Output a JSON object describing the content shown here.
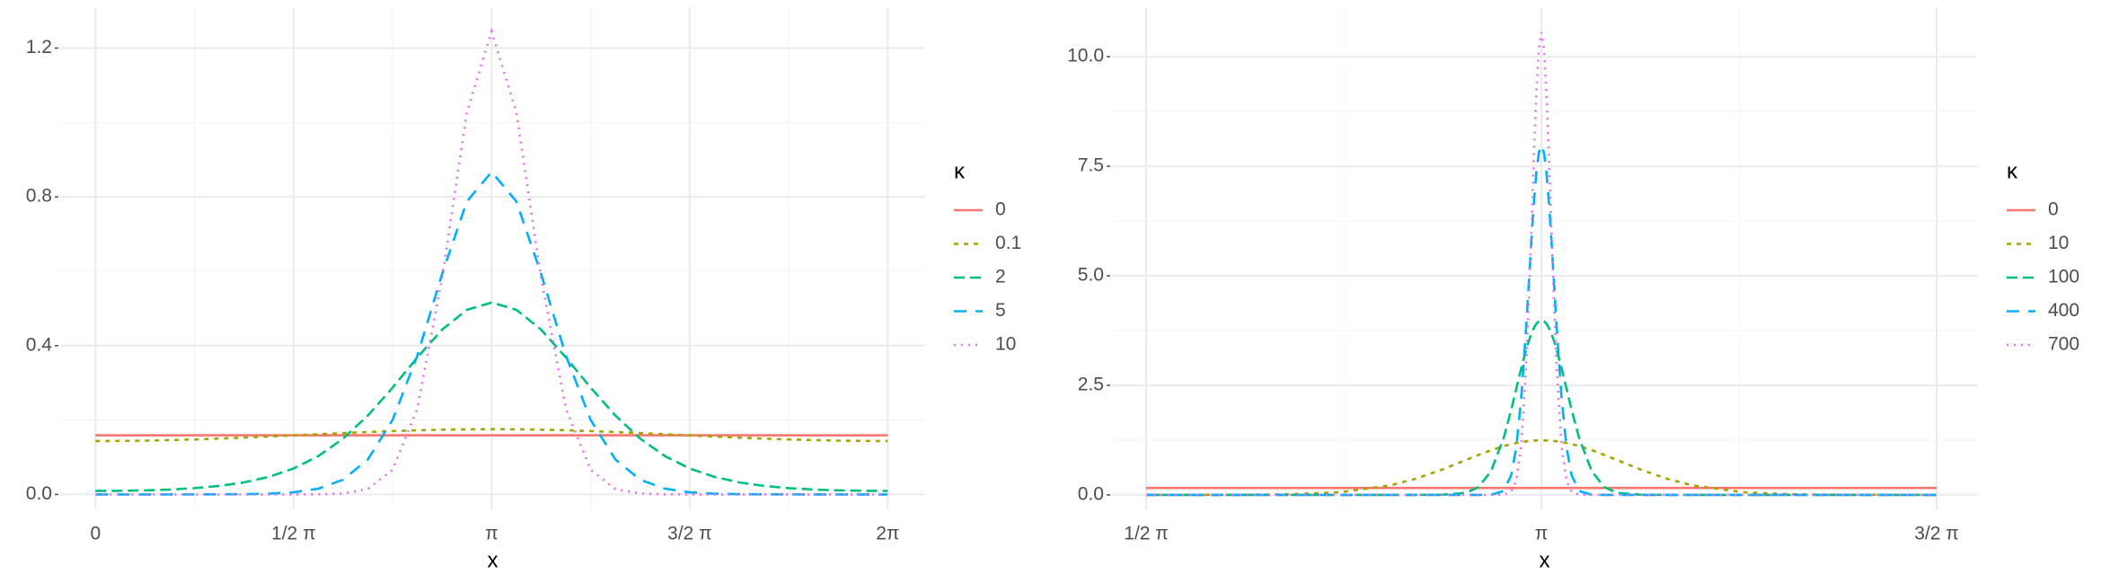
{
  "chart_data": [
    {
      "type": "line",
      "x_label": "x",
      "legend_title": "κ",
      "grid": true,
      "x": [
        0,
        0.19635,
        0.3927,
        0.58905,
        0.7854,
        0.98175,
        1.1781,
        1.37445,
        1.5708,
        1.76715,
        1.9635,
        2.15984,
        2.35619,
        2.55254,
        2.74889,
        2.94524,
        3.14159,
        3.33794,
        3.53429,
        3.73064,
        3.92699,
        4.12334,
        4.31969,
        4.51604,
        4.71239,
        4.90874,
        5.10509,
        5.30144,
        5.49779,
        5.69414,
        5.89049,
        6.08684,
        6.28319
      ],
      "xlim": [
        -0.28,
        6.58
      ],
      "xticks": [
        0,
        {
          "value": 1.5708,
          "label": "1/2 π"
        },
        {
          "value": 3.14159,
          "label": "π"
        },
        {
          "value": 4.71239,
          "label": "3/2 π"
        },
        {
          "value": 6.28319,
          "label": "2π"
        }
      ],
      "ylim": [
        -0.04,
        1.31
      ],
      "yticks": [
        {
          "value": 0,
          "label": "0.0"
        },
        0.4,
        0.8,
        1.2
      ],
      "series": [
        {
          "name": "0",
          "color": "#F8766D",
          "values": [
            0.15915,
            0.15915,
            0.15915,
            0.15915,
            0.15915,
            0.15915,
            0.15915,
            0.15915,
            0.15915,
            0.15915,
            0.15915,
            0.15915,
            0.15915,
            0.15915,
            0.15915,
            0.15915,
            0.15915,
            0.15915,
            0.15915,
            0.15915,
            0.15915,
            0.15915,
            0.15915,
            0.15915,
            0.15915,
            0.15915,
            0.15915,
            0.15915,
            0.15915,
            0.15915,
            0.15915,
            0.15915,
            0.15915
          ]
        },
        {
          "name": "0.1",
          "color": "#A3A500",
          "dash": "5,6",
          "values": [
            0.14365,
            0.14393,
            0.14475,
            0.14609,
            0.14792,
            0.15018,
            0.1528,
            0.15569,
            0.15876,
            0.16189,
            0.16495,
            0.16783,
            0.17039,
            0.17252,
            0.17412,
            0.17512,
            0.17546,
            0.17512,
            0.17412,
            0.17252,
            0.17039,
            0.16783,
            0.16495,
            0.16189,
            0.15876,
            0.15569,
            0.1528,
            0.15018,
            0.14792,
            0.14609,
            0.14475,
            0.14393,
            0.14365
          ]
        },
        {
          "name": "2",
          "color": "#00BF7D",
          "dash": "12,6",
          "values": [
            0.00945,
            0.00982,
            0.011,
            0.01324,
            0.01697,
            0.02298,
            0.03248,
            0.04726,
            0.06982,
            0.10314,
            0.15009,
            0.21209,
            0.28718,
            0.36827,
            0.44303,
            0.49643,
            0.51588,
            0.49643,
            0.44303,
            0.36827,
            0.28718,
            0.21209,
            0.15009,
            0.10314,
            0.06982,
            0.04726,
            0.03248,
            0.02298,
            0.01697,
            0.01324,
            0.011,
            0.00982,
            0.00945
          ]
        },
        {
          "name": "5",
          "color": "#00B0F6",
          "dash": "14,10",
          "values": [
            4e-05,
            4e-05,
            6e-05,
            9e-05,
            0.00017,
            0.00036,
            0.00086,
            0.0022,
            0.00584,
            0.0155,
            0.03959,
            0.09398,
            0.20048,
            0.37336,
            0.59264,
            0.7877,
            0.86713,
            0.7877,
            0.59264,
            0.37336,
            0.20048,
            0.09398,
            0.03959,
            0.0155,
            0.00584,
            0.0022,
            0.00086,
            0.00036,
            0.00017,
            9e-05,
            6e-05,
            4e-05,
            4e-05
          ]
        },
        {
          "name": "10",
          "color": "#E76BF3",
          "dash": "2,6",
          "values": [
            0,
            0,
            0,
            0,
            0,
            0,
            0,
            0,
            6e-05,
            0.0004,
            0.0026,
            0.01462,
            0.06655,
            0.23082,
            0.58157,
            1.02737,
            1.24502,
            1.02737,
            0.58157,
            0.23082,
            0.06655,
            0.01462,
            0.0026,
            0.0004,
            6e-05,
            0,
            0,
            0,
            0,
            0,
            0,
            0,
            0
          ]
        }
      ]
    },
    {
      "type": "line",
      "x_label": "x",
      "legend_title": "κ",
      "grid": true,
      "x": [
        1.5708,
        1.94159,
        2.14159,
        2.34159,
        2.54159,
        2.64159,
        2.74159,
        2.84159,
        2.89159,
        2.94159,
        2.99159,
        3.02159,
        3.04159,
        3.06159,
        3.08159,
        3.09159,
        3.10159,
        3.11159,
        3.12159,
        3.13159,
        3.14159,
        3.15159,
        3.16159,
        3.17159,
        3.18159,
        3.19159,
        3.20159,
        3.22159,
        3.24159,
        3.26159,
        3.29159,
        3.34159,
        3.39159,
        3.44159,
        3.54159,
        3.64159,
        3.74159,
        3.94159,
        4.14159,
        4.34159,
        4.71239
      ],
      "xlim": [
        1.435,
        4.873
      ],
      "xticks": [
        {
          "value": 1.5708,
          "label": "1/2 π"
        },
        {
          "value": 3.14159,
          "label": "π"
        },
        {
          "value": 4.71239,
          "label": "3/2 π"
        }
      ],
      "ylim": [
        -0.33,
        11.13
      ],
      "yticks": [
        {
          "value": 0,
          "label": "0.0"
        },
        2.5,
        {
          "value": 5,
          "label": "5.0"
        },
        7.5,
        {
          "value": 10,
          "label": "10.0"
        }
      ],
      "series": [
        {
          "name": "0",
          "color": "#F8766D",
          "values": [
            0.15915,
            0.15915,
            0.15915,
            0.15915,
            0.15915,
            0.15915,
            0.15915,
            0.15915,
            0.15915,
            0.15915,
            0.15915,
            0.15915,
            0.15915,
            0.15915,
            0.15915,
            0.15915,
            0.15915,
            0.15915,
            0.15915,
            0.15915,
            0.15915,
            0.15915,
            0.15915,
            0.15915,
            0.15915,
            0.15915,
            0.15915,
            0.15915,
            0.15915,
            0.15915,
            0.15915,
            0.15915,
            0.15915,
            0.15915,
            0.15915,
            0.15915,
            0.15915,
            0.15915,
            0.15915,
            0.15915,
            0.15915
          ]
        },
        {
          "name": "10",
          "color": "#A3A500",
          "dash": "5,6",
          "values": [
            6e-05,
            0.00212,
            0.01256,
            0.05998,
            0.21707,
            0.36604,
            0.56539,
            0.79658,
            0.91236,
            1.02002,
            1.11278,
            1.15863,
            1.18435,
            1.20584,
            1.22281,
            1.22956,
            1.2351,
            1.23943,
            1.24253,
            1.2444,
            1.24502,
            1.2444,
            1.24253,
            1.23943,
            1.2351,
            1.22956,
            1.22281,
            1.20584,
            1.18435,
            1.15863,
            1.11278,
            1.02002,
            0.91236,
            0.79658,
            0.56539,
            0.36604,
            0.21707,
            0.05998,
            0.01256,
            0.00212,
            6e-05
          ]
        },
        {
          "name": "100",
          "color": "#00BF7D",
          "dash": "12,6",
          "values": [
            0,
            0,
            0,
            0,
            0,
            2e-05,
            0.00149,
            0.04579,
            0.17792,
            0.54283,
            1.29629,
            1.94109,
            2.41769,
            2.89369,
            3.32823,
            3.51634,
            3.67812,
            3.8091,
            3.90553,
            3.96456,
            3.98443,
            3.96456,
            3.90553,
            3.8091,
            3.67812,
            3.51634,
            3.32823,
            2.89369,
            2.41769,
            1.94109,
            1.29629,
            0.54283,
            0.17792,
            0.04579,
            0.00149,
            2e-05,
            0,
            0,
            0,
            0,
            0
          ]
        },
        {
          "name": "400",
          "color": "#00B0F6",
          "dash": "14,10",
          "values": [
            0,
            0,
            0,
            0,
            0,
            0,
            0,
            0,
            3e-05,
            0.00274,
            0.08939,
            0.44936,
            1.08129,
            2.21901,
            3.88327,
            4.8384,
            5.79207,
            6.66241,
            7.36311,
            7.81842,
            7.97636,
            7.81842,
            7.36311,
            6.66241,
            5.79207,
            4.8384,
            3.88327,
            2.21901,
            1.08129,
            0.44936,
            0.08939,
            0.00274,
            3e-05,
            0,
            0,
            0,
            0,
            0,
            0,
            0,
            0
          ]
        },
        {
          "name": "700",
          "color": "#E76BF3",
          "dash": "2,6",
          "values": [
            0,
            0,
            0,
            0,
            0,
            0,
            0,
            0,
            0,
            0,
            0.00407,
            0.06872,
            0.31967,
            1.12487,
            2.99417,
            4.4002,
            6.02869,
            7.70156,
            9.17444,
            10.19015,
            10.55312,
            10.19015,
            9.17444,
            7.70156,
            6.02869,
            4.4002,
            2.99417,
            1.12487,
            0.31967,
            0.06872,
            0.00407,
            0,
            0,
            0,
            0,
            0,
            0,
            0,
            0,
            0,
            0
          ]
        }
      ]
    }
  ]
}
